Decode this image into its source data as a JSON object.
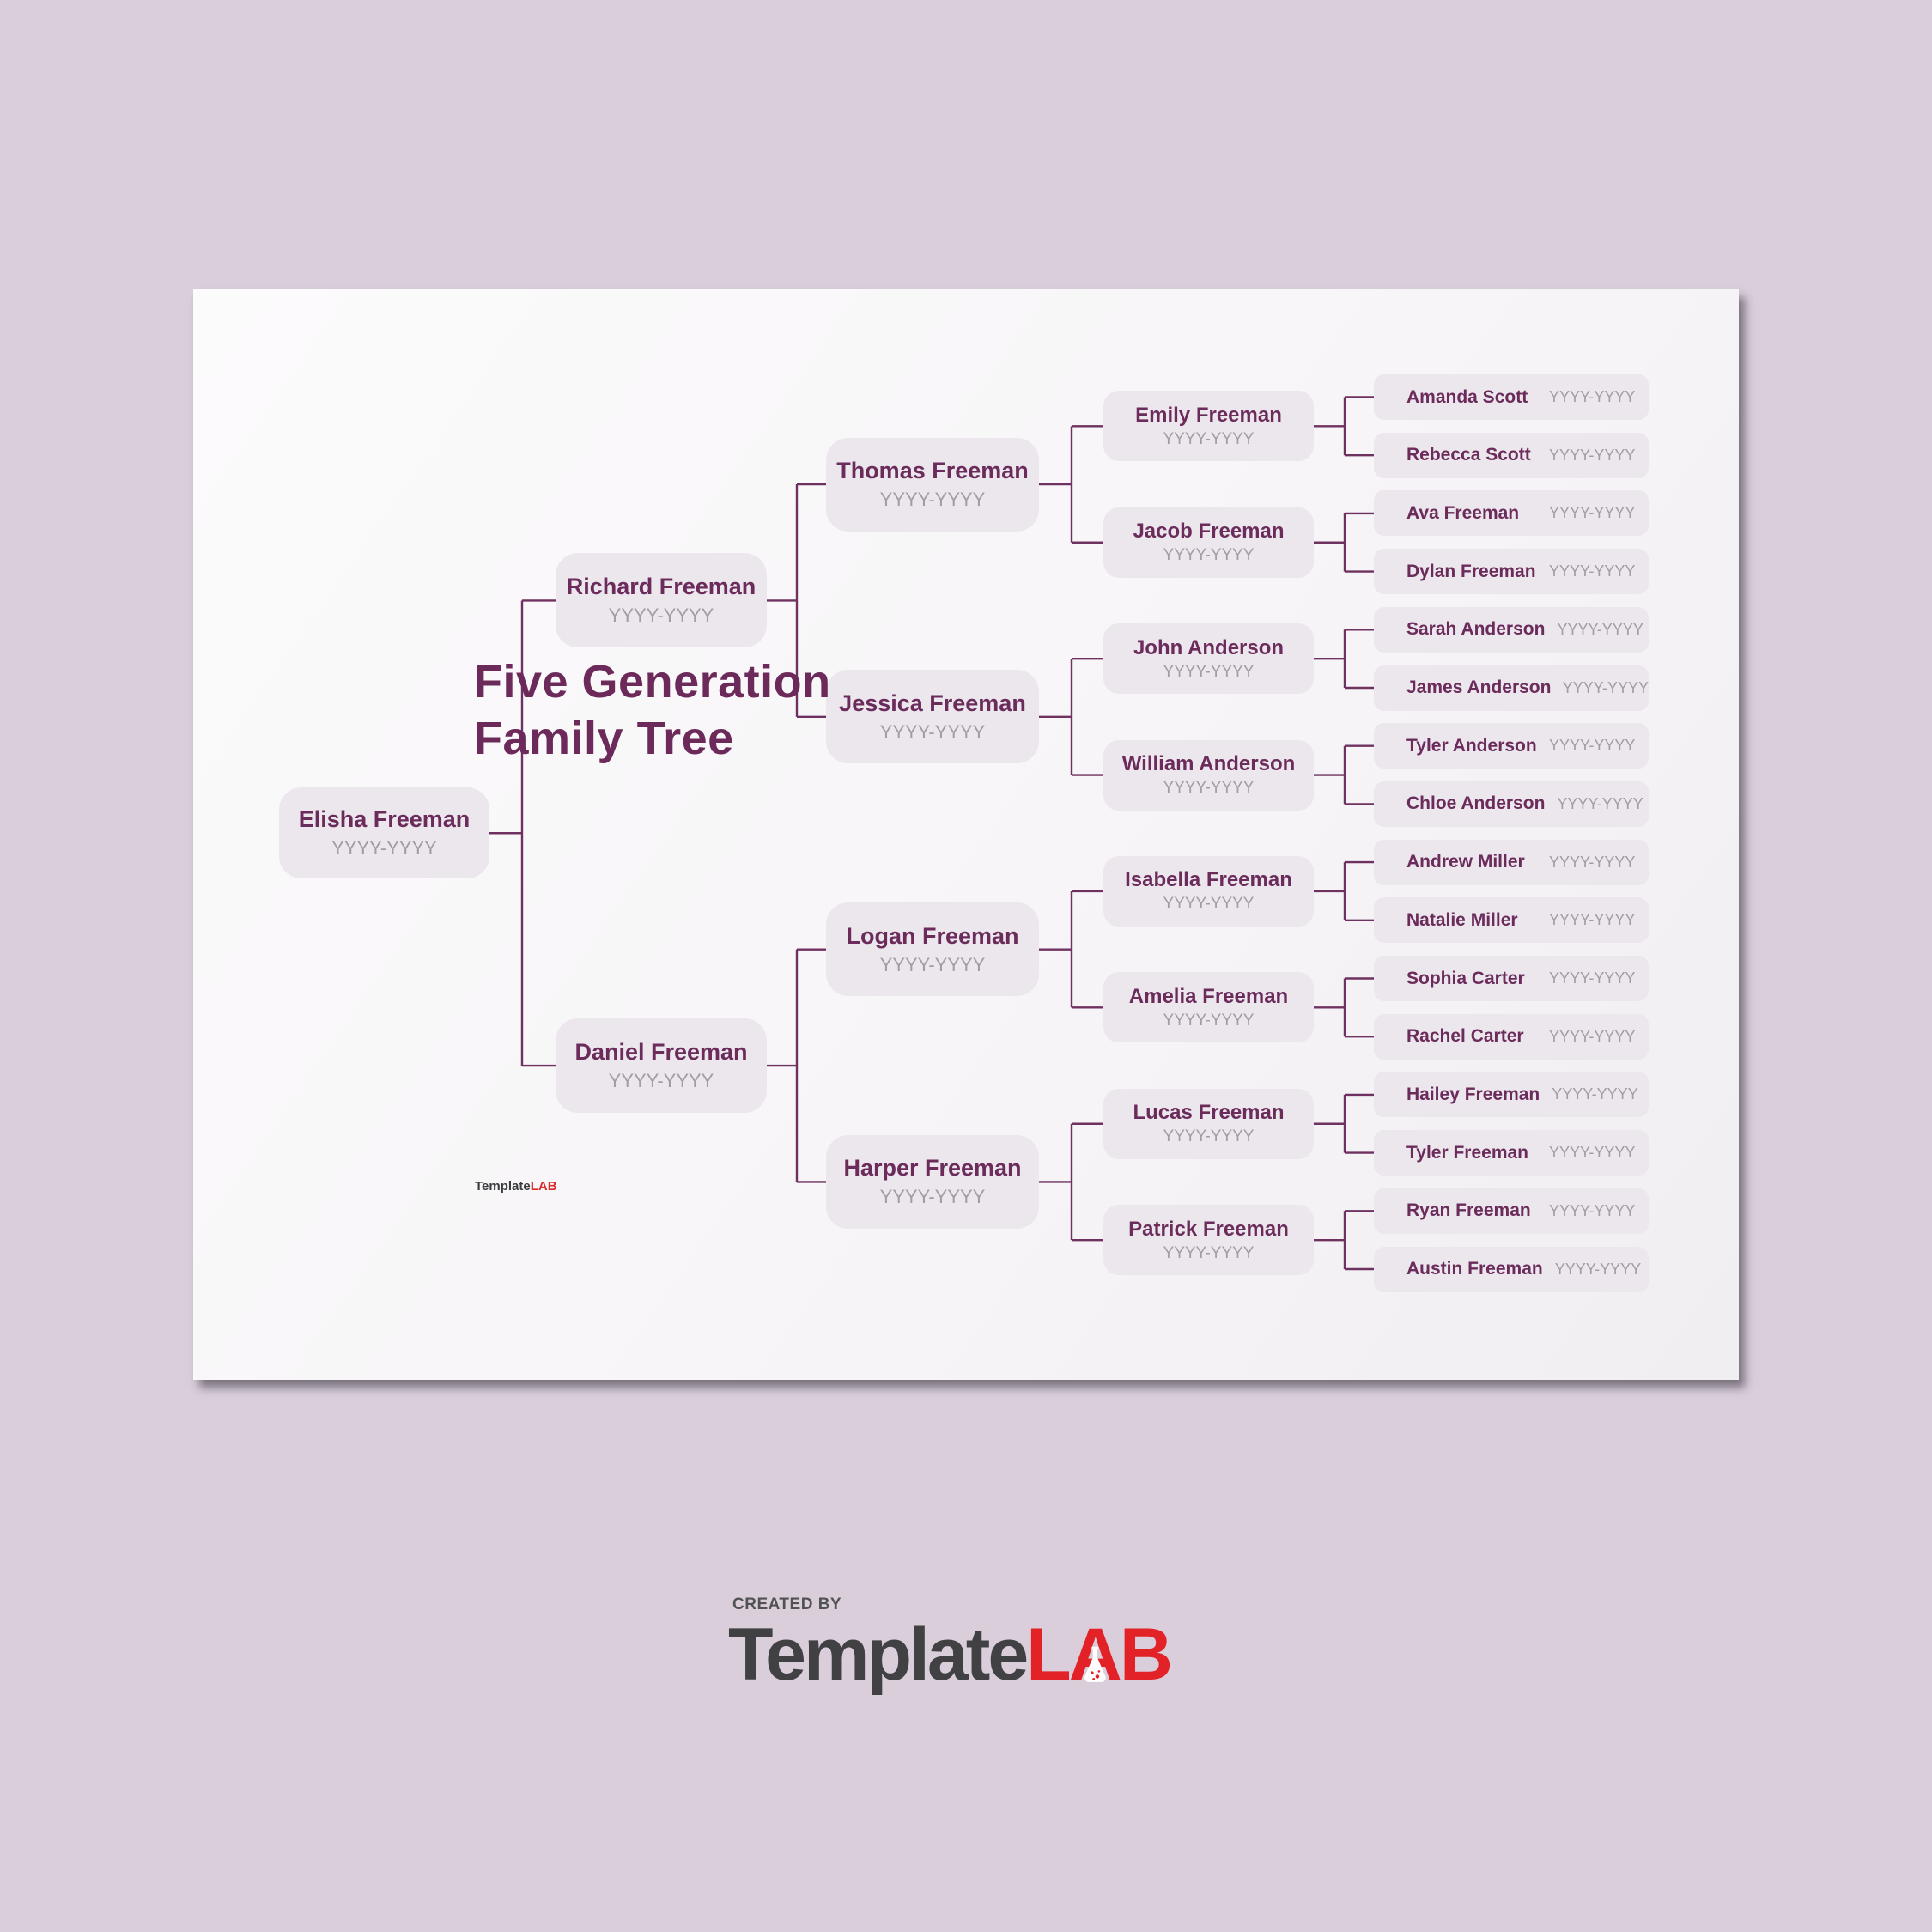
{
  "page": {
    "title_line1": "Five Generation",
    "title_line2": "Family Tree"
  },
  "watermark": {
    "prefix": "Template",
    "suffix": "LAB"
  },
  "footer": {
    "created_by": "CREATED BY",
    "brand_prefix": "Template",
    "brand_l": "L",
    "brand_a": "A",
    "brand_b": "B"
  },
  "colors": {
    "canvas_background": "#d9ceda",
    "page_background": "#f7f5f7",
    "node_fill": "#ece6ed",
    "name_purple": "#6b2c5c",
    "title_purple": "#6c2a5b",
    "dates_gray": "#a29ca5",
    "connector_purple": "#6f3260",
    "brand_red": "#e22226",
    "brand_gray": "#414144"
  },
  "tree": {
    "gen1": [
      {
        "name": "Elisha Freeman",
        "dates": "YYYY-YYYY"
      }
    ],
    "gen2": [
      {
        "name": "Richard Freeman",
        "dates": "YYYY-YYYY"
      },
      {
        "name": "Daniel Freeman",
        "dates": "YYYY-YYYY"
      }
    ],
    "gen3": [
      {
        "name": "Thomas Freeman",
        "dates": "YYYY-YYYY"
      },
      {
        "name": "Jessica Freeman",
        "dates": "YYYY-YYYY"
      },
      {
        "name": "Logan Freeman",
        "dates": "YYYY-YYYY"
      },
      {
        "name": "Harper Freeman",
        "dates": "YYYY-YYYY"
      }
    ],
    "gen4": [
      {
        "name": "Emily Freeman",
        "dates": "YYYY-YYYY"
      },
      {
        "name": "Jacob Freeman",
        "dates": "YYYY-YYYY"
      },
      {
        "name": "John Anderson",
        "dates": "YYYY-YYYY"
      },
      {
        "name": "William Anderson",
        "dates": "YYYY-YYYY"
      },
      {
        "name": "Isabella Freeman",
        "dates": "YYYY-YYYY"
      },
      {
        "name": "Amelia Freeman",
        "dates": "YYYY-YYYY"
      },
      {
        "name": "Lucas Freeman",
        "dates": "YYYY-YYYY"
      },
      {
        "name": "Patrick Freeman",
        "dates": "YYYY-YYYY"
      }
    ],
    "gen5": [
      {
        "name": "Amanda Scott",
        "dates": "YYYY-YYYY"
      },
      {
        "name": "Rebecca Scott",
        "dates": "YYYY-YYYY"
      },
      {
        "name": "Ava Freeman",
        "dates": "YYYY-YYYY"
      },
      {
        "name": "Dylan Freeman",
        "dates": "YYYY-YYYY"
      },
      {
        "name": "Sarah Anderson",
        "dates": "YYYY-YYYY"
      },
      {
        "name": "James Anderson",
        "dates": "YYYY-YYYY"
      },
      {
        "name": "Tyler Anderson",
        "dates": "YYYY-YYYY"
      },
      {
        "name": "Chloe Anderson",
        "dates": "YYYY-YYYY"
      },
      {
        "name": "Andrew Miller",
        "dates": "YYYY-YYYY"
      },
      {
        "name": "Natalie Miller",
        "dates": "YYYY-YYYY"
      },
      {
        "name": "Sophia Carter",
        "dates": "YYYY-YYYY"
      },
      {
        "name": "Rachel Carter",
        "dates": "YYYY-YYYY"
      },
      {
        "name": "Hailey Freeman",
        "dates": "YYYY-YYYY"
      },
      {
        "name": "Tyler Freeman",
        "dates": "YYYY-YYYY"
      },
      {
        "name": "Ryan Freeman",
        "dates": "YYYY-YYYY"
      },
      {
        "name": "Austin Freeman",
        "dates": "YYYY-YYYY"
      }
    ]
  }
}
